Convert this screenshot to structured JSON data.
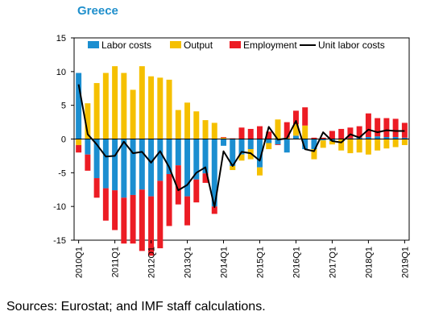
{
  "chart_data": {
    "type": "bar",
    "title": "Greece",
    "xlabel": "",
    "ylabel": "",
    "ylim": [
      -15,
      15
    ],
    "yticks": [
      15,
      10,
      5,
      0,
      -5,
      -10,
      -15
    ],
    "stacked": true,
    "x": [
      "2010Q1",
      "2010Q2",
      "2010Q3",
      "2010Q4",
      "2011Q1",
      "2011Q2",
      "2011Q3",
      "2011Q4",
      "2012Q1",
      "2012Q2",
      "2012Q3",
      "2012Q4",
      "2013Q1",
      "2013Q2",
      "2013Q3",
      "2013Q4",
      "2014Q1",
      "2014Q2",
      "2014Q3",
      "2014Q4",
      "2015Q1",
      "2015Q2",
      "2015Q3",
      "2015Q4",
      "2016Q1",
      "2016Q2",
      "2016Q3",
      "2016Q4",
      "2017Q1",
      "2017Q2",
      "2017Q3",
      "2017Q4",
      "2018Q1",
      "2018Q2",
      "2018Q3",
      "2018Q4",
      "2019Q1"
    ],
    "x_tick_labels": [
      "2010Q1",
      "2011Q1",
      "2012Q1",
      "2013Q1",
      "2014Q1",
      "2015Q1",
      "2016Q1",
      "2017Q1",
      "2018Q1",
      "2019Q1"
    ],
    "series": [
      {
        "name": "Labor costs",
        "kind": "bar",
        "color": "#1b8ed0",
        "values": [
          9.8,
          -2.3,
          -5.8,
          -7.3,
          -7.6,
          -8.7,
          -8.3,
          -7.5,
          -8.5,
          -6.2,
          -5.2,
          -3.9,
          -8.5,
          -6.0,
          -5.1,
          -10.0,
          -1.0,
          -4.0,
          -2.3,
          -1.5,
          -4.2,
          -0.6,
          -0.8,
          -2.0,
          0.5,
          -1.5,
          -1.5,
          -0.2,
          -0.3,
          0.0,
          0.1,
          0.2,
          0.3,
          0.4,
          0.3,
          0.3,
          0.2
        ]
      },
      {
        "name": "Output",
        "kind": "bar",
        "color": "#f5c000",
        "values": [
          -0.9,
          5.3,
          8.3,
          9.8,
          10.8,
          9.8,
          7.3,
          10.8,
          9.3,
          9.1,
          8.8,
          4.3,
          5.4,
          4.1,
          2.8,
          2.4,
          0.2,
          -0.6,
          -0.9,
          -1.5,
          -1.2,
          -0.9,
          2.9,
          0.2,
          1.7,
          2.0,
          -1.5,
          -1.1,
          -0.5,
          -1.7,
          -2.1,
          -2.0,
          -2.3,
          -1.7,
          -1.4,
          -1.2,
          -0.9
        ]
      },
      {
        "name": "Employment",
        "kind": "bar",
        "color": "#ec1c24",
        "values": [
          -1.1,
          -2.4,
          -2.9,
          -4.8,
          -5.9,
          -6.8,
          -7.2,
          -9.1,
          -8.8,
          -10.0,
          -7.7,
          -5.8,
          -4.3,
          -3.4,
          -1.4,
          -1.1,
          0.1,
          0.1,
          1.7,
          1.5,
          1.9,
          1.1,
          -0.1,
          2.3,
          2.0,
          2.7,
          0.2,
          0.2,
          1.2,
          1.5,
          1.6,
          1.7,
          3.5,
          2.7,
          2.8,
          2.7,
          2.2
        ]
      },
      {
        "name": "Unit labor costs",
        "kind": "line",
        "color": "#000000",
        "values": [
          8.1,
          0.7,
          -0.8,
          -2.6,
          -2.5,
          -0.4,
          -2.1,
          -1.9,
          -3.5,
          -1.8,
          -4.2,
          -7.6,
          -6.8,
          -5.0,
          -4.2,
          -10.1,
          -1.8,
          -4.0,
          -1.9,
          -2.1,
          -3.2,
          1.8,
          -0.1,
          0.1,
          2.7,
          -1.5,
          -1.8,
          1.0,
          -0.3,
          -0.5,
          0.7,
          0.2,
          1.4,
          1.0,
          1.3,
          1.2,
          1.2
        ]
      }
    ],
    "legend": "top-inside",
    "grid": false
  },
  "source_note": "Sources: Eurostat; and IMF staff calculations."
}
